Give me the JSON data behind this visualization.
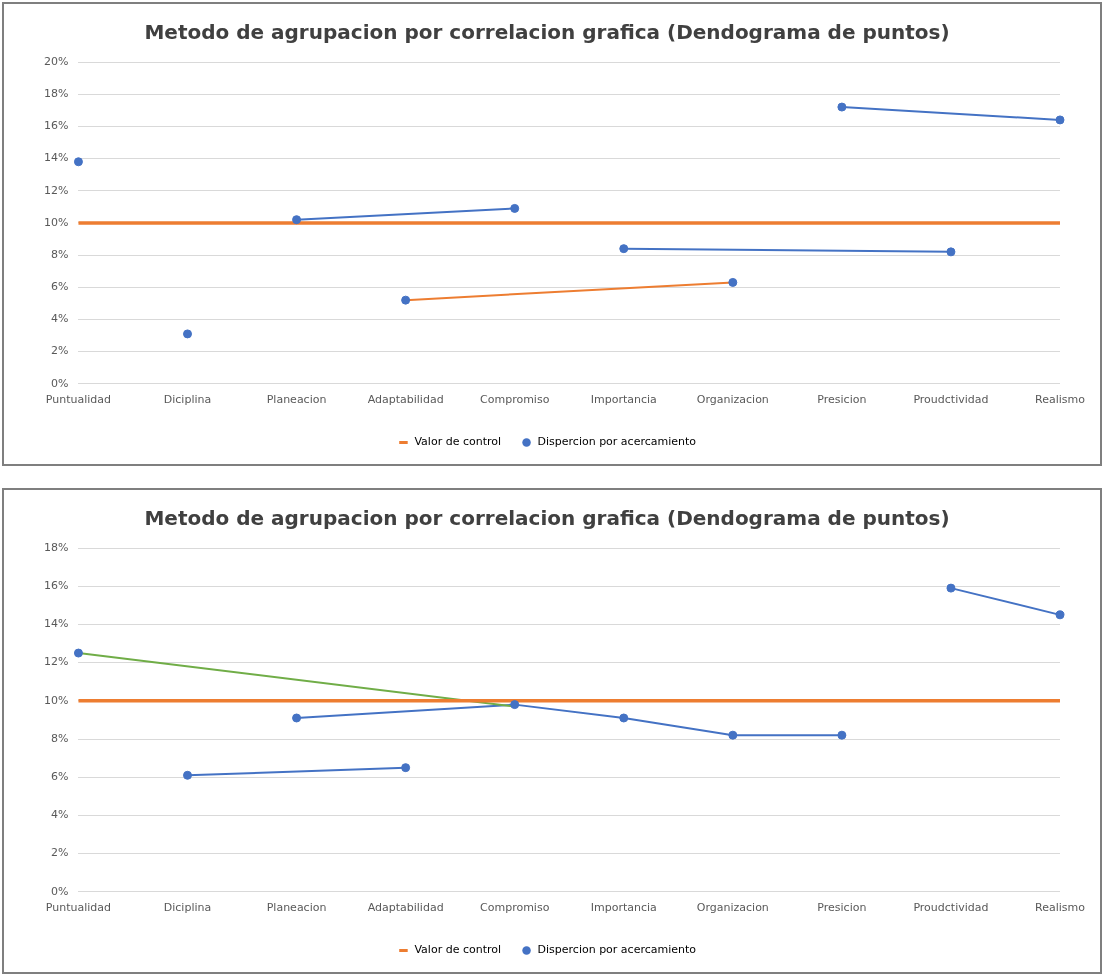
{
  "chart_data": [
    {
      "type": "line",
      "title": "Metodo de agrupacion por correlacion grafica (Dendograma de puntos)",
      "categories": [
        "Puntualidad",
        "Diciplina",
        "Planeacion",
        "Adaptabilidad",
        "Compromiso",
        "Importancia",
        "Organizacion",
        "Presicion",
        "Proudctividad",
        "Realismo"
      ],
      "series": [
        {
          "name": "Valor de control",
          "type": "line",
          "marker": "none",
          "color": "#ed7d31",
          "values": [
            10,
            10,
            10,
            10,
            10,
            10,
            10,
            10,
            10,
            10
          ]
        },
        {
          "type": "line",
          "marker": "none",
          "color": "#4472c4",
          "values": [
            null,
            null,
            10.2,
            null,
            10.9,
            null,
            null,
            null,
            null,
            null
          ]
        },
        {
          "type": "line",
          "marker": "none",
          "color": "#4472c4",
          "values": [
            null,
            null,
            null,
            null,
            null,
            8.4,
            null,
            null,
            8.2,
            null
          ]
        },
        {
          "type": "line",
          "marker": "none",
          "color": "#ed7d31",
          "values": [
            null,
            null,
            null,
            5.2,
            null,
            null,
            6.3,
            null,
            null,
            null
          ]
        },
        {
          "type": "line",
          "marker": "none",
          "color": "#4472c4",
          "values": [
            null,
            null,
            null,
            null,
            null,
            null,
            null,
            17.2,
            null,
            16.4
          ]
        },
        {
          "name": "Dispercion por acercamiento",
          "type": "scatter",
          "marker": "circle",
          "color": "#4472c4",
          "values": [
            13.8,
            3.1,
            10.2,
            5.2,
            10.9,
            8.4,
            6.3,
            17.2,
            8.2,
            16.4
          ]
        }
      ],
      "ylim": [
        0,
        20
      ],
      "yticks": [
        {
          "value": 0,
          "label": "0%"
        },
        {
          "value": 2,
          "label": "2%"
        },
        {
          "value": 4,
          "label": "4%"
        },
        {
          "value": 6,
          "label": "6%"
        },
        {
          "value": 8,
          "label": "8%"
        },
        {
          "value": 10,
          "label": "10%"
        },
        {
          "value": 12,
          "label": "12%"
        },
        {
          "value": 14,
          "label": "14%"
        },
        {
          "value": 16,
          "label": "16%"
        },
        {
          "value": 18,
          "label": "18%"
        },
        {
          "value": 20,
          "label": "20%"
        }
      ],
      "grid": "y",
      "legend": "bottom"
    },
    {
      "type": "line",
      "title": "Metodo de agrupacion por correlacion grafica (Dendograma de puntos)",
      "categories": [
        "Puntualidad",
        "Diciplina",
        "Planeacion",
        "Adaptabilidad",
        "Compromiso",
        "Importancia",
        "Organizacion",
        "Presicion",
        "Proudctividad",
        "Realismo"
      ],
      "series": [
        {
          "name": "Valor de control",
          "type": "line",
          "marker": "none",
          "color": "#ed7d31",
          "values": [
            10,
            10,
            10,
            10,
            10,
            10,
            10,
            10,
            10,
            10
          ]
        },
        {
          "type": "line",
          "marker": "none",
          "color": "#70ad47",
          "values": [
            12.5,
            null,
            null,
            null,
            9.7,
            null,
            null,
            null,
            null,
            null
          ]
        },
        {
          "type": "line",
          "marker": "none",
          "color": "#4472c4",
          "values": [
            null,
            6.1,
            null,
            6.5,
            null,
            null,
            null,
            null,
            null,
            null
          ]
        },
        {
          "type": "line",
          "marker": "none",
          "color": "#4472c4",
          "values": [
            null,
            null,
            9.1,
            null,
            9.8,
            9.1,
            8.2,
            8.2,
            null,
            null
          ]
        },
        {
          "type": "line",
          "marker": "none",
          "color": "#4472c4",
          "values": [
            null,
            null,
            null,
            null,
            null,
            null,
            null,
            null,
            15.9,
            14.5
          ]
        },
        {
          "name": "Dispercion por acercamiento",
          "type": "scatter",
          "marker": "circle",
          "color": "#4472c4",
          "values": [
            12.5,
            6.1,
            9.1,
            6.5,
            9.8,
            9.1,
            8.2,
            8.2,
            15.9,
            14.5
          ]
        }
      ],
      "ylim": [
        0,
        18
      ],
      "yticks": [
        {
          "value": 0,
          "label": "0%"
        },
        {
          "value": 2,
          "label": "2%"
        },
        {
          "value": 4,
          "label": "4%"
        },
        {
          "value": 6,
          "label": "6%"
        },
        {
          "value": 8,
          "label": "8%"
        },
        {
          "value": 10,
          "label": "10%"
        },
        {
          "value": 12,
          "label": "12%"
        },
        {
          "value": 14,
          "label": "14%"
        },
        {
          "value": 16,
          "label": "16%"
        },
        {
          "value": 18,
          "label": "18%"
        }
      ],
      "grid": "y",
      "legend": "bottom"
    }
  ]
}
